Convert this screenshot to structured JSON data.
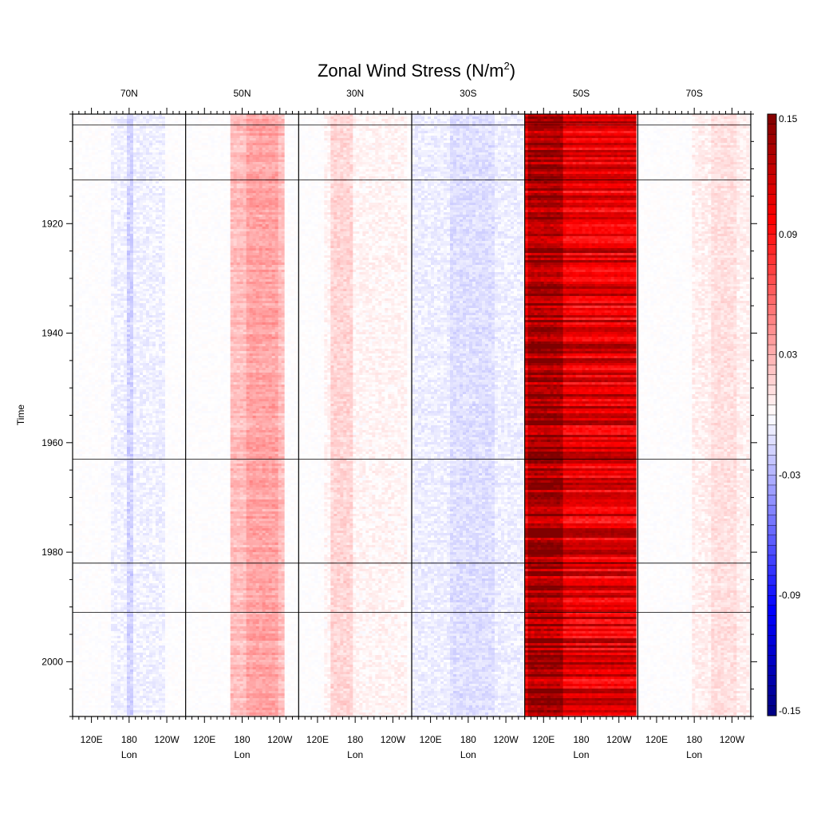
{
  "chart_data": {
    "type": "heatmap",
    "title": "Zonal Wind  Stress (N/m",
    "title_superscript": "2",
    "title_suffix": ")",
    "ylabel": "Time",
    "xlabel": "Lon",
    "ylim": [
      1900,
      2010
    ],
    "y_ticks": [
      1920,
      1940,
      1960,
      1980,
      2000
    ],
    "y_tick_labels": [
      "1920",
      "1940",
      "1960",
      "1980",
      "2000"
    ],
    "x_tick_labels": [
      "120E",
      "180",
      "120W"
    ],
    "x_ticks_deg": [
      120,
      180,
      240
    ],
    "x_range_deg": [
      90,
      270
    ],
    "panels": [
      {
        "label": "70N",
        "mean": -0.005,
        "band": [
          150,
          235
        ],
        "core": [
          175,
          185
        ],
        "core_extra": -0.012
      },
      {
        "label": "50N",
        "mean": 0.025,
        "band": [
          160,
          250
        ],
        "core": [
          185,
          235
        ],
        "core_extra": 0.01
      },
      {
        "label": "30N",
        "mean": 0.004,
        "band": [
          130,
          265
        ],
        "core": [
          140,
          175
        ],
        "core_extra": 0.012
      },
      {
        "label": "30S",
        "mean": -0.006,
        "band": [
          90,
          270
        ],
        "core": [
          150,
          220
        ],
        "core_extra": -0.006
      },
      {
        "label": "50S",
        "mean": 0.11,
        "band": [
          90,
          270
        ],
        "core": [
          95,
          150
        ],
        "core_extra": 0.025
      },
      {
        "label": "70S",
        "mean": 0.006,
        "band": [
          175,
          270
        ],
        "core": [
          205,
          250
        ],
        "core_extra": 0.006
      }
    ],
    "hlines_years": [
      1902,
      1912,
      1963,
      1982,
      1991
    ],
    "colorbar": {
      "range": [
        -0.15,
        0.15
      ],
      "tick_values": [
        0.15,
        0.09,
        0.03,
        -0.03,
        -0.09,
        -0.15
      ],
      "tick_labels": [
        "0.15",
        "0.09",
        "0.03",
        "-0.03",
        "-0.09",
        "-0.15"
      ],
      "negative_color": "#0000ff",
      "negative_extreme": "#000080",
      "positive_color": "#ff0000",
      "positive_extreme": "#800000"
    }
  }
}
